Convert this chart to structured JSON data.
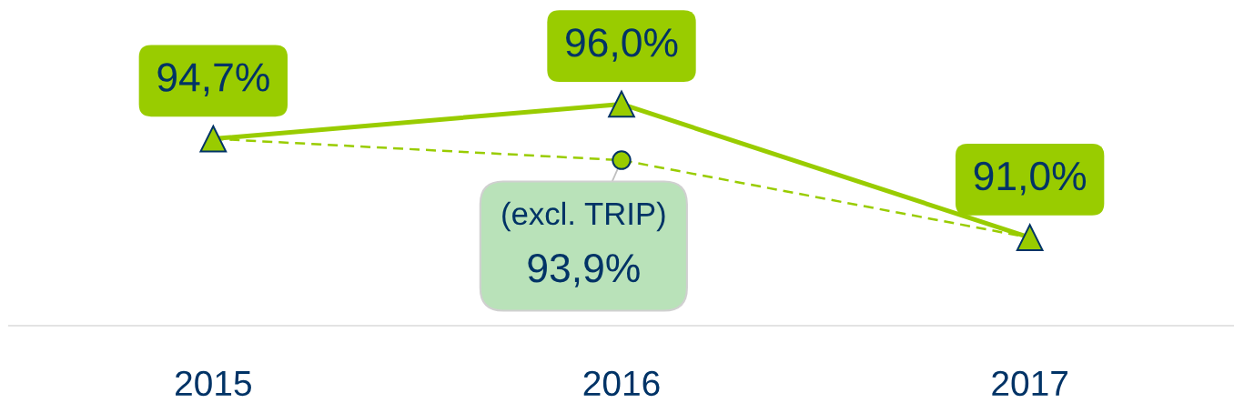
{
  "chart_data": {
    "type": "line",
    "categories": [
      "2015",
      "2016",
      "2017"
    ],
    "tick_labels": "x",
    "legend": false,
    "grid": false,
    "series": [
      {
        "line_style": "solid",
        "marker": "triangle",
        "color": "#99cc00",
        "values": [
          94.7,
          96.0,
          91.0
        ],
        "value_labels": [
          "94,7%",
          "96,0%",
          "91,0%"
        ]
      },
      {
        "line_style": "dashed",
        "color": "#99cc00",
        "values": [
          94.7,
          93.9,
          91.0
        ]
      },
      {
        "type": "scatter",
        "name": "(excl. TRIP)",
        "marker": "circle",
        "color": "#99cc00",
        "values": [
          null,
          93.9,
          null
        ],
        "value_labels": [
          null,
          "93,9%",
          null
        ]
      }
    ]
  }
}
